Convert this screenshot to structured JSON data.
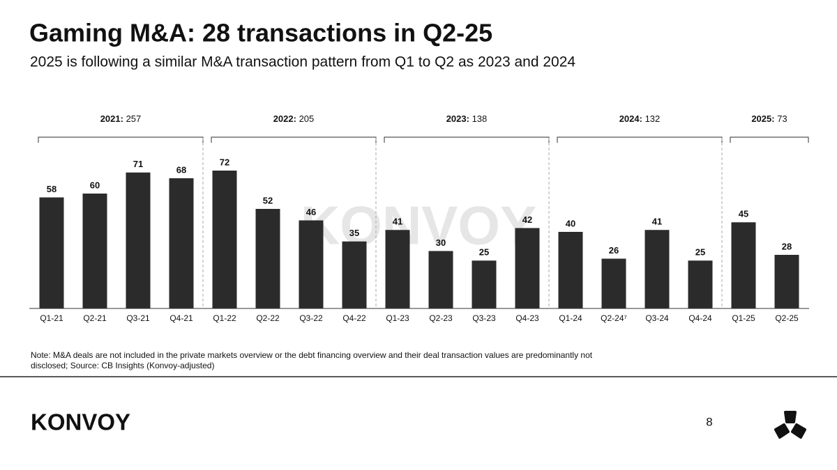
{
  "chart_data": {
    "type": "bar",
    "title": "Gaming M&A: 28 transactions in Q2-25",
    "subtitle": "2025 is following a similar M&A transaction pattern from Q1 to Q2 as 2023 and 2024",
    "color": "#2b2b2b",
    "groups": [
      {
        "year": "2021:",
        "total": 257,
        "categories": [
          "Q1-21",
          "Q2-21",
          "Q3-21",
          "Q4-21"
        ],
        "values": [
          58,
          60,
          71,
          68
        ]
      },
      {
        "year": "2022:",
        "total": 205,
        "categories": [
          "Q1-22",
          "Q2-22",
          "Q3-22",
          "Q4-22"
        ],
        "values": [
          72,
          52,
          46,
          35
        ]
      },
      {
        "year": "2023:",
        "total": 138,
        "categories": [
          "Q1-23",
          "Q2-23",
          "Q3-23",
          "Q4-23"
        ],
        "values": [
          41,
          30,
          25,
          42
        ]
      },
      {
        "year": "2024:",
        "total": 132,
        "categories": [
          "Q1-24",
          "Q2-24⁷",
          "Q3-24",
          "Q4-24"
        ],
        "values": [
          40,
          26,
          41,
          25
        ]
      },
      {
        "year": "2025:",
        "total": 73,
        "categories": [
          "Q1-25",
          "Q2-25"
        ],
        "values": [
          45,
          28
        ]
      }
    ],
    "note": [
      "Note: M&A deals are not included in the private markets overview or the debt financing overview and their deal transaction values are predominantly not",
      "disclosed; Source: CB Insights (Konvoy-adjusted)"
    ]
  },
  "watermark": "KONVOY",
  "footer": {
    "logo": "KONVOY",
    "page": 8
  }
}
